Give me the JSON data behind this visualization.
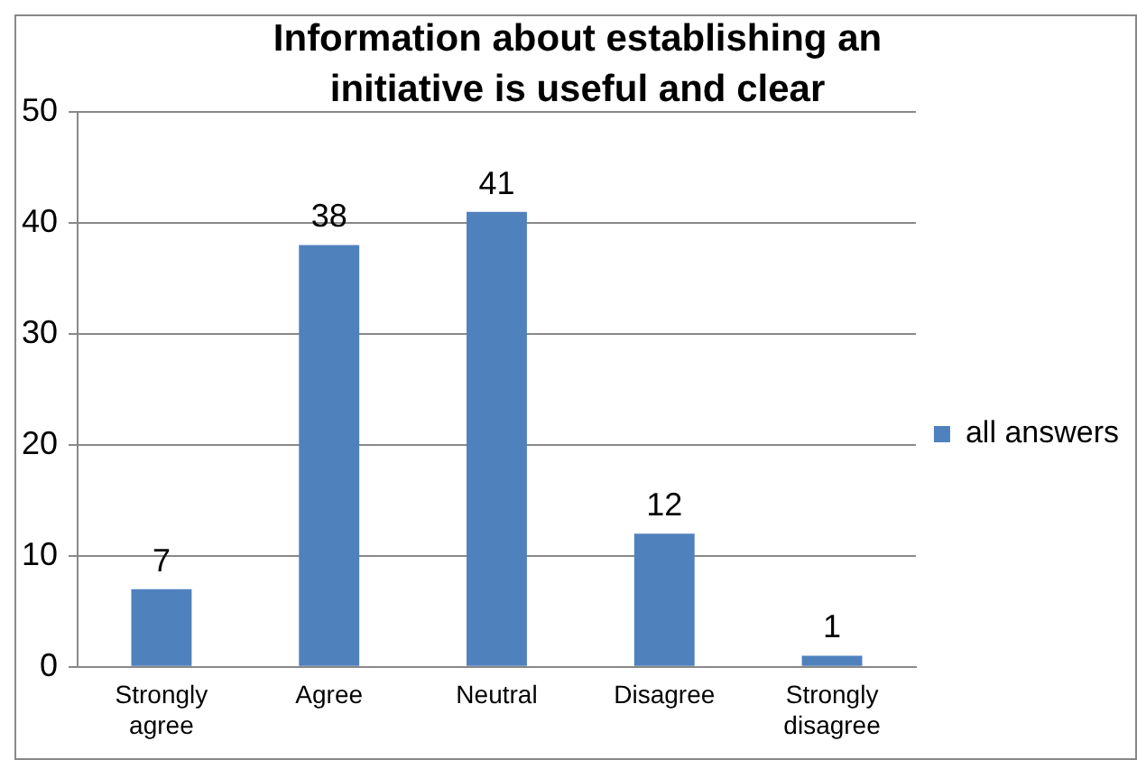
{
  "chart_data": {
    "type": "bar",
    "title": "Information about establishing an initiative is useful and clear",
    "categories": [
      "Strongly agree",
      "Agree",
      "Neutral",
      "Disagree",
      "Strongly disagree"
    ],
    "series": [
      {
        "name": "all answers",
        "color": "#4f81bd",
        "values": [
          7,
          38,
          41,
          12,
          1
        ]
      }
    ],
    "ylim": [
      0,
      50
    ],
    "yticks": [
      0,
      10,
      20,
      30,
      40,
      50
    ],
    "grid": "y",
    "legend": "right",
    "data_labels": true
  }
}
